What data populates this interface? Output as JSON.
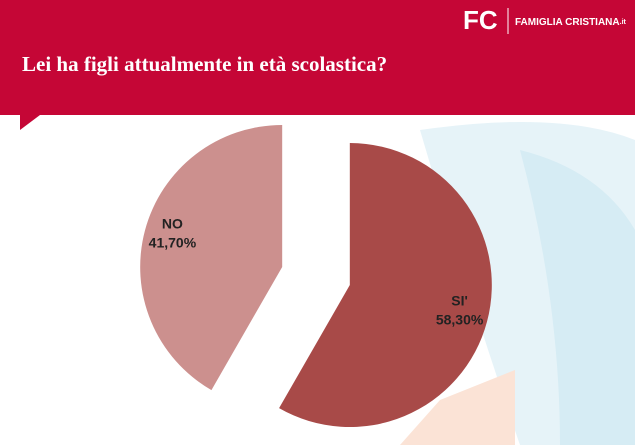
{
  "header": {
    "logo": "FC",
    "brand": "FAMIGLIA CRISTIANA",
    "domain": ".it"
  },
  "chart_data": {
    "type": "pie",
    "title": "Lei ha figli attualmente in età scolastica?",
    "categories": [
      "SI'",
      "NO"
    ],
    "values": [
      58.3,
      41.7
    ],
    "value_labels": [
      "58,30%",
      "41,70%"
    ],
    "colors": [
      "#a84a48",
      "#cc908e"
    ]
  }
}
